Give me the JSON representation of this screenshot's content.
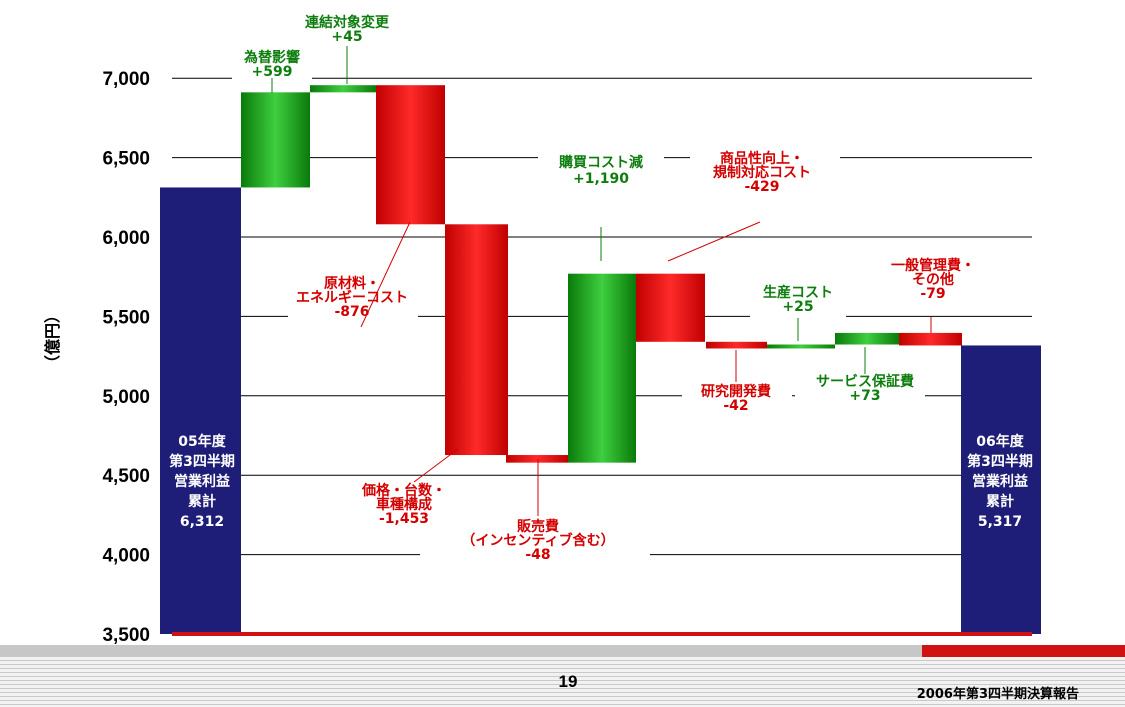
{
  "chart_data": {
    "type": "waterfall",
    "ylabel": "（億円）",
    "ylim": [
      3500,
      7000
    ],
    "yticks": [
      "3,500",
      "4,000",
      "4,500",
      "5,000",
      "5,500",
      "6,000",
      "6,500",
      "7,000"
    ],
    "colors": {
      "total": "#1e1e78",
      "increase": "#109a10",
      "decrease": "#e00000",
      "increase_text": "#0d7d0d",
      "decrease_text": "#d40000"
    },
    "bars": [
      {
        "kind": "total",
        "label_lines": [
          "05年度",
          "第3四半期",
          "営業利益",
          "累計",
          "6,312"
        ],
        "start": 3500,
        "end": 6312
      },
      {
        "kind": "increase",
        "label_lines": [
          "為替影響",
          "+599"
        ],
        "start": 6312,
        "end": 6911
      },
      {
        "kind": "increase",
        "label_lines": [
          "連結対象変更",
          "+45"
        ],
        "start": 6911,
        "end": 6956
      },
      {
        "kind": "decrease",
        "label_lines": [
          "原材料・",
          "エネルギーコスト",
          "-876"
        ],
        "start": 6956,
        "end": 6080
      },
      {
        "kind": "decrease",
        "label_lines": [
          "価格・台数・",
          "車種構成",
          "-1,453"
        ],
        "start": 6080,
        "end": 4627
      },
      {
        "kind": "decrease",
        "label_lines": [
          "販売費",
          "（インセンティブ含む）",
          "-48"
        ],
        "start": 4627,
        "end": 4579
      },
      {
        "kind": "increase",
        "label_lines": [
          "購買コスト減",
          "+1,190"
        ],
        "start": 4579,
        "end": 5769
      },
      {
        "kind": "decrease",
        "label_lines": [
          "商品性向上・",
          "規制対応コスト",
          "-429"
        ],
        "start": 5769,
        "end": 5340
      },
      {
        "kind": "decrease",
        "label_lines": [
          "研究開発費",
          "-42"
        ],
        "start": 5340,
        "end": 5298
      },
      {
        "kind": "increase",
        "label_lines": [
          "生産コスト",
          "+25"
        ],
        "start": 5298,
        "end": 5323
      },
      {
        "kind": "increase",
        "label_lines": [
          "サービス保証費",
          "+73"
        ],
        "start": 5323,
        "end": 5396
      },
      {
        "kind": "decrease",
        "label_lines": [
          "一般管理費・",
          "その他"
        ],
        "start": 5396,
        "end": 5317
      },
      {
        "kind": "total",
        "label_lines": [
          "06年度",
          "第3四半期",
          "営業利益",
          "累計",
          "5,317"
        ],
        "start": 3500,
        "end": 5317
      }
    ],
    "extra_labels": [
      "-79"
    ]
  },
  "footer": {
    "page_number": "19",
    "title": "2006年第3四半期決算報告"
  }
}
